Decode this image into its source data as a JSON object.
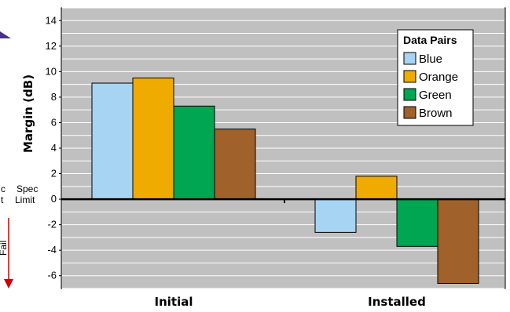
{
  "chart_data": {
    "type": "bar",
    "title": "",
    "xlabel": "",
    "ylabel": "Margin (dB)",
    "ylim": [
      -7,
      15
    ],
    "yticks": [
      14,
      12,
      10,
      8,
      6,
      4,
      2,
      0,
      -2,
      -4,
      -6
    ],
    "grid": true,
    "categories": [
      "Initial",
      "Installed"
    ],
    "legend": {
      "title": "Data Pairs",
      "position": "top-right"
    },
    "series": [
      {
        "name": "Blue",
        "color": "#a6d4f2",
        "values": [
          9.1,
          -2.6
        ]
      },
      {
        "name": "Orange",
        "color": "#f0ab00",
        "values": [
          9.5,
          1.8
        ]
      },
      {
        "name": "Green",
        "color": "#00a651",
        "values": [
          7.3,
          -3.7
        ]
      },
      {
        "name": "Brown",
        "color": "#a0612a",
        "values": [
          5.5,
          -6.6
        ]
      }
    ],
    "annotations": {
      "spec_limit_left": [
        "c",
        "t"
      ],
      "spec_limit": [
        "Spec",
        "Limit"
      ],
      "fail": "Fail"
    },
    "colors": {
      "plot_bg": "#c0c0c0",
      "grid": "#ffffff",
      "fail_arrow": "#cc0000",
      "pass_arrow": "#4b2d8f"
    }
  }
}
